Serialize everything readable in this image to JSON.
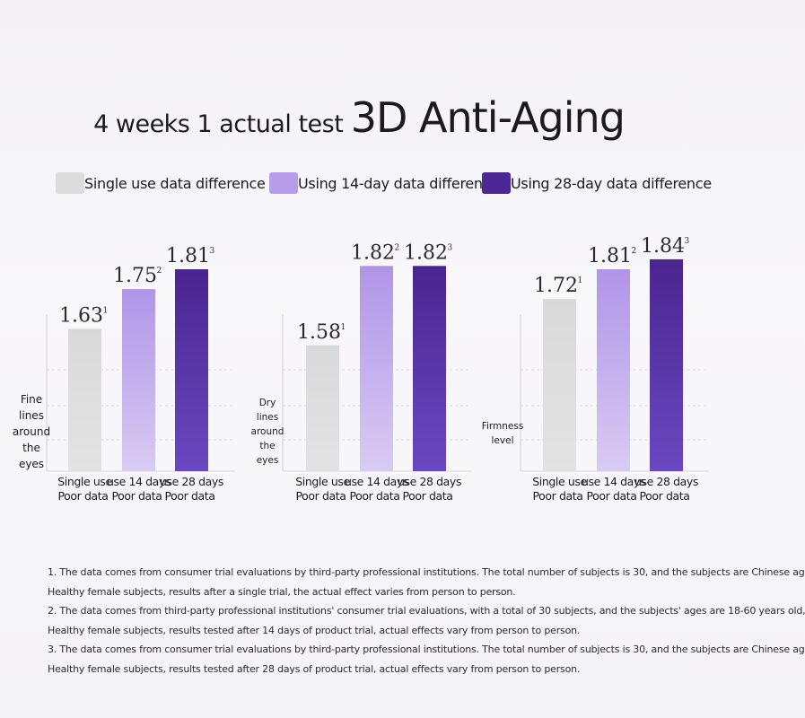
{
  "title": {
    "part1": "4 weeks 1 actual test",
    "part2": "3D Anti-Aging"
  },
  "legend": [
    {
      "label": "Single use data difference",
      "color": "#d8d8d8"
    },
    {
      "label": "Using 14-day data difference",
      "color": "#b89ee8"
    },
    {
      "label": "Using 28-day data difference",
      "color": "#4e2a9a"
    }
  ],
  "colors": {
    "single": "#d8d8d8",
    "day14": "#b89ee8",
    "day28": "#4e2a9a"
  },
  "chart_data": [
    {
      "type": "bar",
      "ylabel": [
        "Fine",
        "lines",
        "around",
        "the",
        "eyes"
      ],
      "categories": [
        [
          "Single use",
          "Poor data"
        ],
        [
          "use 14 days",
          "Poor data"
        ],
        [
          "use 28 days",
          "Poor data"
        ]
      ],
      "values": [
        1.63,
        1.75,
        1.81
      ],
      "value_labels": [
        "1.63",
        "1.75",
        "1.81"
      ],
      "superscripts": [
        "1",
        "2",
        "3"
      ],
      "ylim": [
        0,
        1.9
      ],
      "grid": true
    },
    {
      "type": "bar",
      "ylabel": [
        "Dry",
        "lines",
        "around",
        "the",
        "eyes"
      ],
      "categories": [
        [
          "Single use",
          "Poor data"
        ],
        [
          "use 14 days",
          "Poor data"
        ],
        [
          "use 28 days",
          "Poor data"
        ]
      ],
      "values": [
        1.58,
        1.82,
        1.82
      ],
      "value_labels": [
        "1.58",
        "1.82",
        "1.82"
      ],
      "superscripts": [
        "1",
        "2",
        "3"
      ],
      "ylim": [
        0,
        1.9
      ],
      "grid": true
    },
    {
      "type": "bar",
      "ylabel": [
        "Firmness",
        "level"
      ],
      "categories": [
        [
          "Single use",
          "Poor data"
        ],
        [
          "use 14 days",
          "Poor data"
        ],
        [
          "use 28 days",
          "Poor data"
        ]
      ],
      "values": [
        1.72,
        1.81,
        1.84
      ],
      "value_labels": [
        "1.72",
        "1.81",
        "1.84"
      ],
      "superscripts": [
        "1",
        "2",
        "3"
      ],
      "ylim": [
        0,
        1.9
      ],
      "grid": true
    }
  ],
  "footnotes": [
    "1. The data comes from consumer trial evaluations by third-party professional institutions. The total number of subjects is 30, and the subjects are Chinese ag",
    "Healthy female subjects, results after a single trial, the actual effect varies from person to person.",
    "2. The data comes from third-party professional institutions' consumer trial evaluations, with a total of 30 subjects, and the subjects' ages are 18-60 years old,",
    "Healthy female subjects, results tested after 14 days of product trial, actual effects vary from person to person.",
    "3. The data comes from consumer trial evaluations by third-party professional institutions. The total number of subjects is 30, and the subjects are Chinese ag",
    "Healthy female subjects, results tested after 28 days of product trial, actual effects vary from person to person."
  ]
}
